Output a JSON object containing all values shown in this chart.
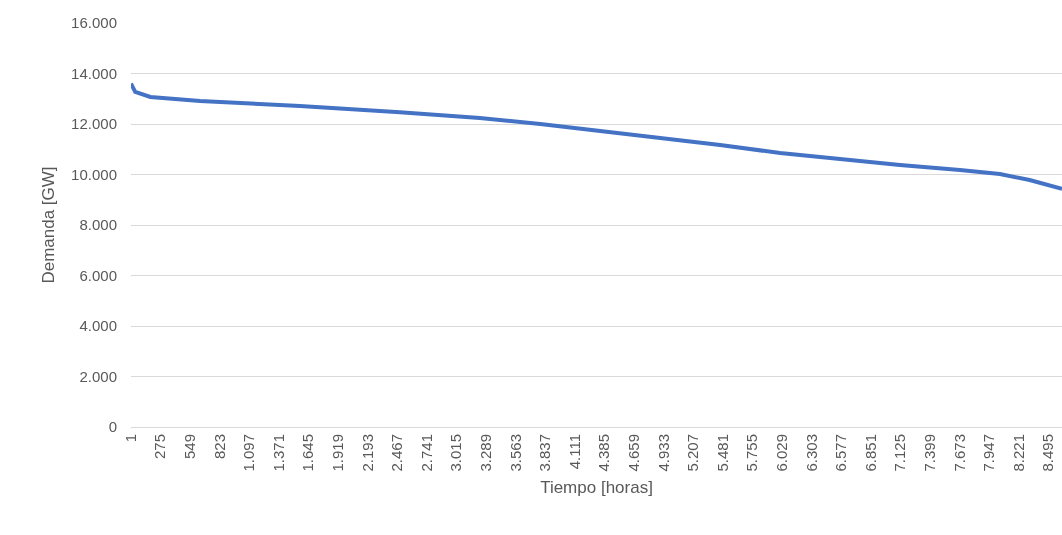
{
  "chart_data": {
    "type": "line",
    "xlabel": "Tiempo [horas]",
    "ylabel": "Demanda [GW]",
    "x": [
      1,
      40,
      180,
      640,
      1565,
      2490,
      3230,
      3790,
      4345,
      4900,
      5455,
      6010,
      6565,
      7120,
      7675,
      8045,
      8320,
      8620
    ],
    "series": [
      {
        "color": "#4472c4",
        "values": [
          13600,
          13270,
          13070,
          12910,
          12710,
          12470,
          12240,
          12000,
          11720,
          11450,
          11170,
          10850,
          10610,
          10380,
          10180,
          10020,
          9780,
          9430
        ]
      }
    ],
    "xlim": [
      1,
      8620
    ],
    "xticks": [
      1,
      275,
      549,
      823,
      {
        "value": 1097,
        "label": "1.097"
      },
      {
        "value": 1371,
        "label": "1.371"
      },
      {
        "value": 1645,
        "label": "1.645"
      },
      {
        "value": 1919,
        "label": "1.919"
      },
      {
        "value": 2193,
        "label": "2.193"
      },
      {
        "value": 2467,
        "label": "2.467"
      },
      {
        "value": 2741,
        "label": "2.741"
      },
      {
        "value": 3015,
        "label": "3.015"
      },
      {
        "value": 3289,
        "label": "3.289"
      },
      {
        "value": 3563,
        "label": "3.563"
      },
      {
        "value": 3837,
        "label": "3.837"
      },
      {
        "value": 4111,
        "label": "4.111"
      },
      {
        "value": 4385,
        "label": "4.385"
      },
      {
        "value": 4659,
        "label": "4.659"
      },
      {
        "value": 4933,
        "label": "4.933"
      },
      {
        "value": 5207,
        "label": "5.207"
      },
      {
        "value": 5481,
        "label": "5.481"
      },
      {
        "value": 5755,
        "label": "5.755"
      },
      {
        "value": 6029,
        "label": "6.029"
      },
      {
        "value": 6303,
        "label": "6.303"
      },
      {
        "value": 6577,
        "label": "6.577"
      },
      {
        "value": 6851,
        "label": "6.851"
      },
      {
        "value": 7125,
        "label": "7.125"
      },
      {
        "value": 7399,
        "label": "7.399"
      },
      {
        "value": 7673,
        "label": "7.673"
      },
      {
        "value": 7947,
        "label": "7.947"
      },
      {
        "value": 8221,
        "label": "8.221"
      },
      {
        "value": 8495,
        "label": "8.495"
      }
    ],
    "ylim": [
      0,
      16000
    ],
    "yticks": [
      0,
      {
        "value": 2000,
        "label": "2.000"
      },
      {
        "value": 4000,
        "label": "4.000"
      },
      {
        "value": 6000,
        "label": "6.000"
      },
      {
        "value": 8000,
        "label": "8.000"
      },
      {
        "value": 10000,
        "label": "10.000"
      },
      {
        "value": 12000,
        "label": "12.000"
      },
      {
        "value": 14000,
        "label": "14.000"
      },
      {
        "value": 16000,
        "label": "16.000"
      }
    ],
    "grid": "y",
    "marker": "none",
    "line_style": "solid"
  }
}
